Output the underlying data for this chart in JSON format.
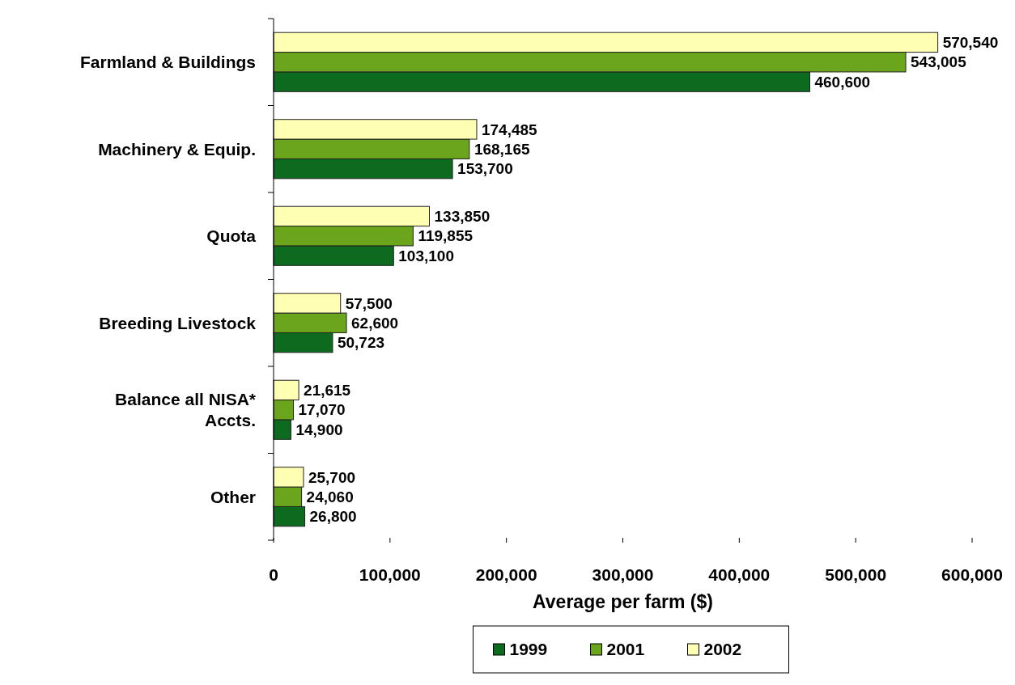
{
  "chart_data": {
    "type": "bar",
    "orientation": "horizontal",
    "xlabel": "Average per farm ($)",
    "categories": [
      "Farmland & Buildings",
      "Machinery & Equip.",
      "Quota",
      "Breeding Livestock",
      "Balance all NISA* Accts.",
      "Other"
    ],
    "series": [
      {
        "name": "1999",
        "color": "#0d6b1f",
        "values": [
          460600,
          153700,
          103100,
          50723,
          14900,
          26800
        ],
        "value_labels": [
          "460,600",
          "153,700",
          "103,100",
          "50,723",
          "14,900",
          "26,800"
        ]
      },
      {
        "name": "2001",
        "color": "#6aa51c",
        "values": [
          543005,
          168165,
          119855,
          62600,
          17070,
          24060
        ],
        "value_labels": [
          "543,005",
          "168,165",
          "119,855",
          "62,600",
          "17,070",
          "24,060"
        ]
      },
      {
        "name": "2002",
        "color": "#ffffb3",
        "values": [
          570540,
          174485,
          133850,
          57500,
          21615,
          25700
        ],
        "value_labels": [
          "570,540",
          "174,485",
          "133,850",
          "57,500",
          "21,615",
          "25,700"
        ]
      }
    ],
    "xlim": [
      0,
      600000
    ],
    "xticks": [
      0,
      {
        "value": 100000,
        "label": "100,000"
      },
      {
        "value": 200000,
        "label": "200,000"
      },
      {
        "value": 300000,
        "label": "300,000"
      },
      {
        "value": 400000,
        "label": "400,000"
      },
      {
        "value": 500000,
        "label": "500,000"
      },
      {
        "value": 600000,
        "label": "600,000"
      }
    ],
    "legend": "bottom",
    "grid": false
  }
}
